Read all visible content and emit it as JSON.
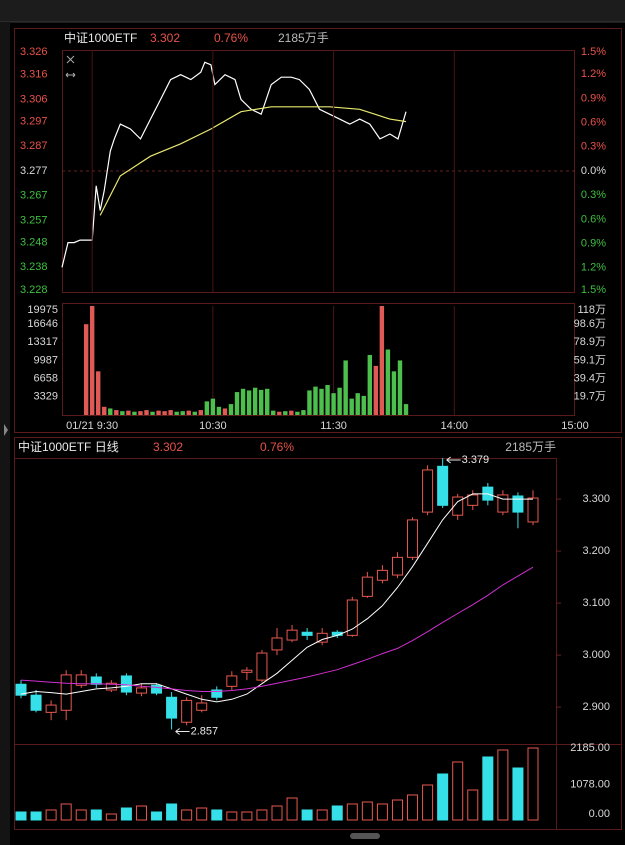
{
  "intraday_header": {
    "name": "中证1000ETF",
    "price": 3.302,
    "change": "0.76%",
    "volume": "2185万手"
  },
  "daily_header": {
    "name": "中证1000ETF 日线",
    "price": 3.302,
    "change": "0.76%",
    "volume": "2185万手"
  },
  "chart_data": [
    {
      "type": "line",
      "ylim": [
        3.228,
        3.326
      ],
      "yticks": [
        3.326,
        3.316,
        3.306,
        3.297,
        3.287,
        3.277,
        3.267,
        3.257,
        3.248,
        3.238,
        3.228
      ],
      "y2lim": [
        -1.5,
        1.5
      ],
      "y2ticks": [
        {
          "value": 1.5,
          "label": "1.5%"
        },
        {
          "value": 1.2,
          "label": "1.2%"
        },
        {
          "value": 0.9,
          "label": "0.9%"
        },
        {
          "value": 0.6,
          "label": "0.6%"
        },
        {
          "value": 0.3,
          "label": "0.3%"
        },
        {
          "value": 0,
          "label": "0.0%"
        },
        {
          "value": -0.3,
          "label": "0.3%"
        },
        {
          "value": -0.6,
          "label": "0.6%"
        },
        {
          "value": -0.9,
          "label": "0.9%"
        },
        {
          "value": -1.2,
          "label": "1.2%"
        },
        {
          "value": -1.5,
          "label": "1.5%"
        }
      ],
      "xlim": [
        -15,
        240
      ],
      "up_color": "#e8524a",
      "down_color": "#3fbf3f",
      "flat_color": "#d8d8d8",
      "series": [
        {
          "color": "#ffffff",
          "x": [
            -15,
            -12,
            -9,
            -6,
            -3,
            0,
            2,
            4,
            6,
            9,
            11,
            14,
            19,
            24,
            29,
            34,
            39,
            44,
            49,
            54,
            56,
            59,
            61,
            66,
            71,
            74,
            79,
            84,
            89,
            94,
            99,
            103,
            108,
            113,
            118,
            123,
            128,
            133,
            138,
            143,
            148,
            152,
            156
          ],
          "values": [
            3.238,
            3.248,
            3.248,
            3.249,
            3.249,
            3.249,
            3.271,
            3.261,
            3.269,
            3.285,
            3.29,
            3.296,
            3.294,
            3.29,
            3.298,
            3.306,
            3.314,
            3.316,
            3.314,
            3.317,
            3.321,
            3.32,
            3.312,
            3.316,
            3.314,
            3.306,
            3.302,
            3.3,
            3.312,
            3.315,
            3.315,
            3.314,
            3.31,
            3.302,
            3.3,
            3.298,
            3.296,
            3.298,
            3.296,
            3.29,
            3.292,
            3.29,
            3.301
          ]
        },
        {
          "color": "#e8e870",
          "x": [
            4,
            14,
            29,
            44,
            59,
            74,
            89,
            118,
            133,
            148,
            156
          ],
          "values": [
            3.259,
            3.275,
            3.283,
            3.288,
            3.294,
            3.301,
            3.303,
            3.303,
            3.302,
            3.298,
            3.297
          ]
        }
      ]
    },
    {
      "type": "bar",
      "ylim": [
        0,
        19975
      ],
      "yticks": [
        19975,
        16646,
        13317,
        9987,
        6658,
        3329
      ],
      "y2lim": [
        0,
        118
      ],
      "y2ticks": [
        {
          "value": 118,
          "label": "118万"
        },
        {
          "value": 98.6,
          "label": "98.6万"
        },
        {
          "value": 78.9,
          "label": "78.9万"
        },
        {
          "value": 59.1,
          "label": "59.1万"
        },
        {
          "value": 39.4,
          "label": "39.4万"
        },
        {
          "value": 19.7,
          "label": "19.7万"
        }
      ],
      "xlim": [
        -15,
        240
      ],
      "xticks": [
        {
          "value": 0,
          "label": "01/21 9:30"
        },
        {
          "value": 60,
          "label": "10:30"
        },
        {
          "value": 120,
          "label": "11:30"
        },
        {
          "value": 180,
          "label": "14:00"
        },
        {
          "value": 240,
          "label": "15:00"
        }
      ],
      "x": [
        -3,
        0,
        3,
        6,
        9,
        12,
        15,
        18,
        21,
        24,
        27,
        30,
        33,
        36,
        39,
        42,
        45,
        48,
        51,
        54,
        57,
        60,
        63,
        66,
        69,
        72,
        75,
        78,
        81,
        84,
        87,
        90,
        93,
        96,
        99,
        102,
        105,
        108,
        111,
        114,
        117,
        120,
        123,
        126,
        129,
        132,
        135,
        138,
        141,
        144,
        147,
        150,
        153,
        156
      ],
      "values": [
        16646,
        19975,
        8000,
        1500,
        1200,
        900,
        700,
        800,
        600,
        700,
        900,
        600,
        800,
        700,
        900,
        600,
        700,
        800,
        600,
        900,
        2500,
        3000,
        1500,
        1200,
        2000,
        4200,
        4800,
        4500,
        5000,
        4600,
        4800,
        800,
        600,
        700,
        800,
        600,
        900,
        4500,
        5200,
        4800,
        5500,
        4000,
        5000,
        10000,
        3000,
        4000,
        3500,
        11000,
        9000,
        19975,
        12000,
        8000,
        10000,
        2000
      ],
      "colors": [
        "#e05a55",
        "#e05a55",
        "#e05a55",
        "#e05a55",
        "#4cbf4c",
        "#e05a55",
        "#4cbf4c",
        "#e05a55",
        "#4cbf4c",
        "#e05a55",
        "#e05a55",
        "#4cbf4c",
        "#e05a55",
        "#e05a55",
        "#e05a55",
        "#4cbf4c",
        "#4cbf4c",
        "#e05a55",
        "#4cbf4c",
        "#e05a55",
        "#4cbf4c",
        "#4cbf4c",
        "#4cbf4c",
        "#e05a55",
        "#4cbf4c",
        "#4cbf4c",
        "#4cbf4c",
        "#4cbf4c",
        "#4cbf4c",
        "#4cbf4c",
        "#4cbf4c",
        "#4cbf4c",
        "#e05a55",
        "#4cbf4c",
        "#e05a55",
        "#4cbf4c",
        "#4cbf4c",
        "#4cbf4c",
        "#4cbf4c",
        "#4cbf4c",
        "#4cbf4c",
        "#4cbf4c",
        "#4cbf4c",
        "#4cbf4c",
        "#4cbf4c",
        "#4cbf4c",
        "#4cbf4c",
        "#4cbf4c",
        "#e05a55",
        "#e05a55",
        "#4cbf4c",
        "#4cbf4c",
        "#4cbf4c",
        "#4cbf4c"
      ]
    },
    {
      "type": "candlestick",
      "ylim": [
        2.833,
        3.379
      ],
      "yticks": [
        {
          "value": 3.3,
          "label": "3.300"
        },
        {
          "value": 3.2,
          "label": "3.200"
        },
        {
          "value": 3.1,
          "label": "3.100"
        },
        {
          "value": 3.0,
          "label": "3.000"
        },
        {
          "value": 2.9,
          "label": "2.900"
        }
      ],
      "up_color": "#e8584f",
      "down_color": "#36e0e8",
      "open": [
        2.944,
        2.923,
        2.89,
        2.894,
        2.942,
        2.958,
        2.933,
        2.96,
        2.927,
        2.942,
        2.919,
        2.871,
        2.894,
        2.933,
        2.94,
        2.967,
        2.952,
        3.01,
        3.029,
        3.044,
        3.025,
        3.044,
        3.038,
        3.113,
        3.144,
        3.154,
        3.188,
        3.275,
        3.363,
        3.269,
        3.288,
        3.323,
        3.275,
        3.306,
        3.256
      ],
      "high": [
        2.952,
        2.933,
        2.913,
        2.971,
        2.971,
        2.965,
        2.952,
        2.965,
        2.946,
        2.946,
        2.929,
        2.919,
        2.923,
        2.94,
        2.969,
        2.977,
        3.01,
        3.052,
        3.058,
        3.052,
        3.052,
        3.048,
        3.112,
        3.16,
        3.173,
        3.198,
        3.265,
        3.365,
        3.379,
        3.31,
        3.317,
        3.331,
        3.317,
        3.313,
        3.317
      ],
      "low": [
        2.917,
        2.89,
        2.875,
        2.875,
        2.937,
        2.937,
        2.929,
        2.923,
        2.921,
        2.923,
        2.857,
        2.865,
        2.89,
        2.913,
        2.933,
        2.952,
        2.948,
        3.0,
        3.025,
        3.029,
        3.019,
        3.033,
        3.035,
        3.11,
        3.138,
        3.148,
        3.183,
        3.269,
        3.283,
        3.26,
        3.279,
        3.288,
        3.269,
        3.244,
        3.25
      ],
      "close": [
        2.923,
        2.894,
        2.904,
        2.962,
        2.962,
        2.944,
        2.946,
        2.929,
        2.937,
        2.927,
        2.879,
        2.913,
        2.908,
        2.919,
        2.96,
        2.971,
        3.004,
        3.033,
        3.048,
        3.038,
        3.042,
        3.038,
        3.106,
        3.15,
        3.163,
        3.188,
        3.26,
        3.356,
        3.288,
        3.304,
        3.308,
        3.298,
        3.308,
        3.275,
        3.302
      ],
      "series": [
        {
          "color": "#ffffff",
          "values": [
            2.925,
            2.93,
            2.928,
            2.925,
            2.93,
            2.935,
            2.937,
            2.94,
            2.945,
            2.945,
            2.935,
            2.925,
            2.915,
            2.91,
            2.915,
            2.925,
            2.945,
            2.965,
            2.99,
            3.015,
            3.03,
            3.038,
            3.05,
            3.07,
            3.095,
            3.13,
            3.17,
            3.215,
            3.26,
            3.295,
            3.31,
            3.31,
            3.3,
            3.3,
            3.3
          ]
        },
        {
          "color": "#d030d0",
          "values": [
            2.952,
            2.95,
            2.948,
            2.946,
            2.945,
            2.945,
            2.944,
            2.943,
            2.94,
            2.938,
            2.935,
            2.932,
            2.93,
            2.93,
            2.932,
            2.935,
            2.94,
            2.946,
            2.952,
            2.958,
            2.965,
            2.972,
            2.982,
            2.992,
            3.003,
            3.013,
            3.028,
            3.045,
            3.063,
            3.08,
            3.097,
            3.115,
            3.135,
            3.152,
            3.169
          ]
        }
      ]
    },
    {
      "type": "bar",
      "ylim": [
        0,
        2185
      ],
      "yticks": [
        {
          "value": 2185,
          "label": "2185.00"
        },
        {
          "value": 1078,
          "label": "1078.00"
        },
        {
          "value": 0,
          "label": "0.00"
        }
      ],
      "values": [
        243,
        243,
        304,
        486,
        304,
        304,
        182,
        364,
        425,
        243,
        486,
        304,
        364,
        304,
        243,
        243,
        304,
        425,
        668,
        304,
        304,
        425,
        486,
        546,
        486,
        607,
        759,
        1062,
        1396,
        1760,
        911,
        1912,
        2125,
        1578,
        2185
      ]
    }
  ]
}
